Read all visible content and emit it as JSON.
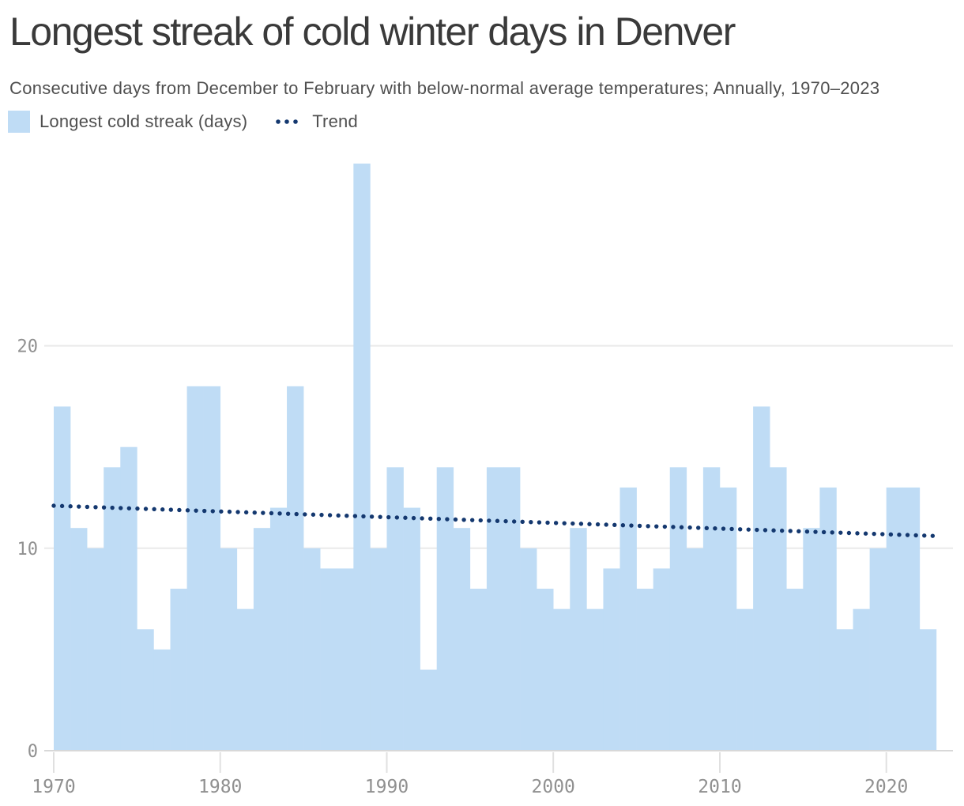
{
  "header": {
    "title": "Longest streak of cold winter days in Denver",
    "subtitle": "Consecutive days from December to February with below-normal average temperatures; Annually, 1970–2023"
  },
  "legend": {
    "items": [
      {
        "label": "Longest cold streak (days)",
        "swatch": "square"
      },
      {
        "label": "Trend",
        "swatch": "dotted-line"
      }
    ]
  },
  "colors": {
    "bar": "#bfdcf5",
    "trend": "#14386f",
    "grid": "#eaeaea",
    "baseline": "#d8d8d8",
    "tick": "#e0e0e0",
    "axis_text": "#909090",
    "title_text": "#3a3a3a",
    "subtitle_text": "#4f4f4f"
  },
  "chart_data": {
    "type": "bar",
    "title": "Longest streak of cold winter days in Denver",
    "subtitle": "Consecutive days from December to February with below-normal average temperatures; Annually, 1970–2023",
    "series_name": "Longest cold streak (days)",
    "xlabel": "",
    "ylabel": "",
    "ylim": [
      0,
      29
    ],
    "y_ticks": [
      0,
      10,
      20
    ],
    "x_ticks": [
      1970,
      1980,
      1990,
      2000,
      2010,
      2020
    ],
    "grid": "horizontal",
    "legend_position": "top-left",
    "years": [
      1970,
      1971,
      1972,
      1973,
      1974,
      1975,
      1976,
      1977,
      1978,
      1979,
      1980,
      1981,
      1982,
      1983,
      1984,
      1985,
      1986,
      1987,
      1988,
      1989,
      1990,
      1991,
      1992,
      1993,
      1994,
      1995,
      1996,
      1997,
      1998,
      1999,
      2000,
      2001,
      2002,
      2003,
      2004,
      2005,
      2006,
      2007,
      2008,
      2009,
      2010,
      2011,
      2012,
      2013,
      2014,
      2015,
      2016,
      2017,
      2018,
      2019,
      2020,
      2021,
      2022,
      2023
    ],
    "values": [
      17,
      11,
      10,
      14,
      15,
      6,
      5,
      8,
      18,
      18,
      10,
      7,
      11,
      12,
      18,
      10,
      9,
      9,
      29,
      10,
      14,
      12,
      4,
      14,
      11,
      8,
      14,
      14,
      10,
      8,
      7,
      11,
      7,
      9,
      13,
      8,
      9,
      14,
      10,
      14,
      13,
      7,
      17,
      14,
      8,
      11,
      13,
      6,
      7,
      10,
      13,
      13,
      6,
      0
    ],
    "trend": {
      "name": "Trend",
      "style": "dotted",
      "start_year": 1970,
      "start_value": 12.1,
      "end_year": 2023,
      "end_value": 10.6
    }
  }
}
